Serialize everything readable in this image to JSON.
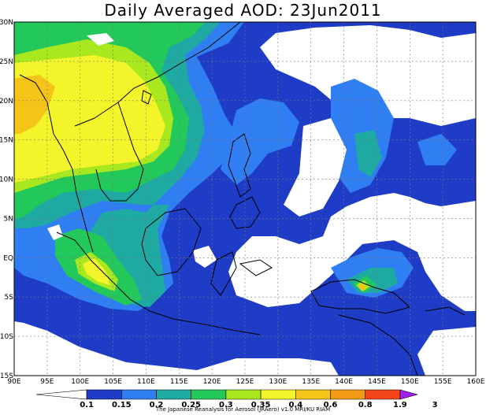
{
  "title": "Daily Averaged AOD: 23Jun2011",
  "credit": "The Japanese Reanalysis for Aerosol (JRAero) v1.0 MRI/KU RIAM",
  "map": {
    "lon_labels": [
      "90E",
      "95E",
      "100E",
      "105E",
      "110E",
      "115E",
      "120E",
      "125E",
      "130E",
      "135E",
      "140E",
      "145E",
      "150E",
      "155E",
      "160E"
    ],
    "lat_labels": [
      "30N",
      "25N",
      "20N",
      "15N",
      "10N",
      "5N",
      "EQ",
      "5S",
      "10S",
      "15S"
    ]
  },
  "colorbar": {
    "labels": [
      "0.1",
      "0.15",
      "0.2",
      "0.25",
      "0.3",
      "0.35",
      "0.4",
      "0.6",
      "0.8",
      "1.9",
      "3"
    ],
    "colors": [
      "#ffffff",
      "#1f3cc7",
      "#2f7ff2",
      "#1ea9a2",
      "#22c95a",
      "#a9e81e",
      "#f4f42a",
      "#f4c418",
      "#f29a14",
      "#f24418",
      "#a020f0"
    ]
  }
}
